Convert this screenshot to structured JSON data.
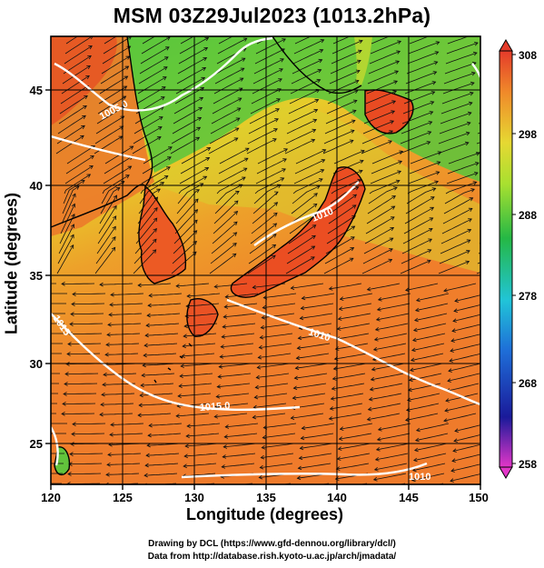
{
  "title": "MSM 03Z29Jul2023 (1013.2hPa)",
  "x_axis": {
    "label": "Longitude (degrees)",
    "ticks": [
      "120",
      "125",
      "130",
      "135",
      "140",
      "145",
      "150"
    ]
  },
  "y_axis": {
    "label": "Latitude  (degrees)",
    "ticks": [
      "25",
      "30",
      "35",
      "40",
      "45"
    ]
  },
  "colorbar": {
    "ticks": [
      "258",
      "268",
      "278",
      "288",
      "298",
      "308"
    ]
  },
  "contour_labels": [
    "1005.0",
    "1010",
    "1010",
    "1015.0",
    "1015",
    "1010"
  ],
  "credits": {
    "line1": "Drawing by DCL (https://www.gfd-dennou.org/library/dcl/)",
    "line2": "Data from http://database.rish.kyoto-u.ac.jp/arch/jmadata/"
  },
  "map_data": {
    "lon_range": [
      120,
      150
    ],
    "lat_range": [
      22.8,
      47.8
    ],
    "colorbar_range": [
      258,
      308
    ],
    "colors": {
      "warm": "#f07d2b",
      "hot": "#e8491e",
      "mild": "#e6c52a",
      "cool": "#7bd22e",
      "green": "#49c33f"
    }
  }
}
